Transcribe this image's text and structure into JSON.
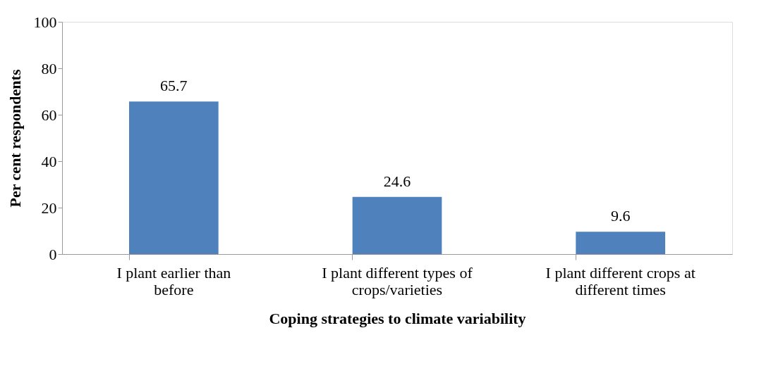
{
  "chart_data": {
    "type": "bar",
    "xlabel": "Coping strategies to climate variability",
    "ylabel": "Per cent respondents",
    "categories": [
      "I plant earlier than before",
      "I plant different types of crops/varieties",
      "I plant different crops at different times"
    ],
    "values": [
      65.7,
      24.6,
      9.6
    ],
    "color": "#4f81bd",
    "ylim": [
      0,
      100
    ],
    "yticks": [
      0,
      20,
      40,
      60,
      80,
      100
    ],
    "grid": false,
    "data_labels": true
  }
}
